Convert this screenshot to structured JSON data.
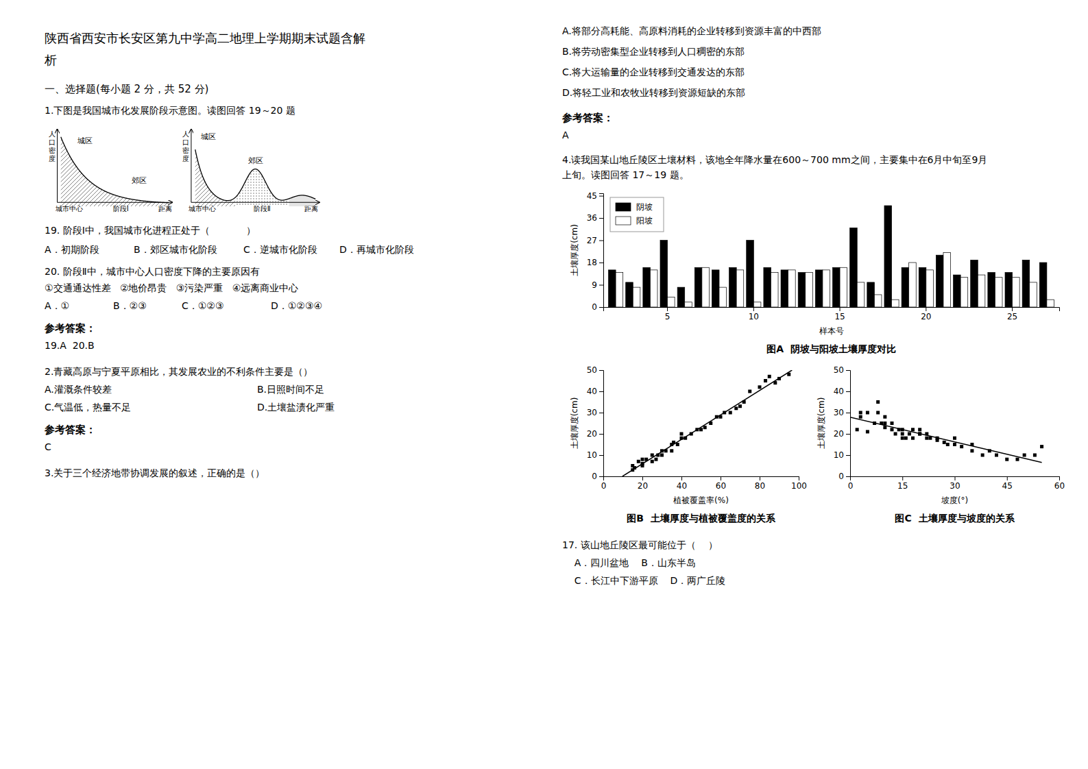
{
  "page": {
    "title_line1": "陕西省西安市长安区第九中学高二地理上学期期末试题含解",
    "title_line2": "析",
    "section1": "一、选择题(每小题 2 分，共 52 分)",
    "q1_text": "1.下图是我国城市化发展阶段示意图。读图回答 19～20 题",
    "q19_text": "19. 阶段Ⅰ中，我国城市化进程正处于（            ）",
    "q19_A": "A．初期阶段",
    "q19_B": "B．郊区城市化阶段",
    "q19_C": "C．逆城市化阶段",
    "q19_D": "D．再城市化阶段",
    "q20_text": "20. 阶段Ⅱ中，城市中心人口密度下降的主要原因有",
    "q20_sub": "①交通通达性差   ②地价昂贵   ③污染严重   ④远离商业中心",
    "q20_A": "A．①",
    "q20_B": "B．②③",
    "q20_C": "C．①②③",
    "q20_D": "D．①②③④",
    "ref1": "参考答案：",
    "ans1": "19.A  20.B",
    "q2_text": "2.青藏高原与宁夏平原相比，其发展农业的不利条件主要是（）",
    "q2_A": "A.灌溉条件较差",
    "q2_B": "B.日照时间不足",
    "q2_C": "C.气温低，热量不足",
    "q2_D": "D.土壤盐渍化严重",
    "ref2": "参考答案：",
    "ans2": "C",
    "q3_text": "3.关于三个经济地带协调发展的叙述，正确的是（）",
    "q3_A": "A.将部分高耗能、高原料消耗的企业转移到资源丰富的中西部",
    "q3_B": "B.将劳动密集型企业转移到人口稠密的东部",
    "q3_C": "C.将大运输量的企业转移到交通发达的东部",
    "q3_D": "D.将轻工业和农牧业转移到资源短缺的东部",
    "ref3": "参考答案：",
    "ans3": "A",
    "q4_line1": "4.读我国某山地丘陵区土壤材料，该地全年降水量在600～700 mm之间，主要集中在6月中旬至9月",
    "q4_line2": "上旬。读图回答 17～19 题。",
    "q17_text": "17. 该山地丘陵区最可能位于（    ）",
    "q17_AB": "    A．四川盆地    B．山东半岛",
    "q17_CD": "    C．长江中下游平原    D．两广丘陵"
  },
  "diagrams": [
    {
      "stage": "阶段Ⅰ",
      "y_label": "人口密度",
      "origin_label": "城市中心",
      "x_label": "距离",
      "region_labels": [
        "城区",
        "郊区"
      ]
    },
    {
      "stage": "阶段Ⅱ",
      "y_label": "人口密度",
      "origin_label": "城市中心",
      "x_label": "距离",
      "region_labels": [
        "城区",
        "郊区"
      ]
    }
  ],
  "chart_data": [
    {
      "type": "bar",
      "title": "图A  阴坡与阳坡土壤厚度对比",
      "x_label": "样本号",
      "y_label": "土壤厚度(cm)",
      "categories": [
        null,
        null,
        null,
        "5",
        null,
        null,
        null,
        null,
        "10",
        null,
        null,
        null,
        null,
        "15",
        null,
        null,
        null,
        null,
        "20",
        null,
        null,
        null,
        null,
        "25",
        null,
        null
      ],
      "series": [
        {
          "name": "阴坡",
          "color": "black",
          "values": [
            15,
            10,
            16,
            27,
            8,
            16,
            15,
            16,
            27,
            16,
            15,
            14,
            15,
            16,
            32,
            10,
            41,
            16,
            16,
            21,
            13,
            19,
            14,
            14,
            19,
            18
          ]
        },
        {
          "name": "阳坡",
          "color": "white",
          "values": [
            14,
            8,
            15,
            4,
            2,
            16,
            8,
            15,
            2,
            14,
            15,
            14,
            15,
            16,
            10,
            5,
            3,
            18,
            15,
            22,
            12,
            13,
            12,
            12,
            10,
            3
          ]
        }
      ],
      "ylim": [
        0,
        46
      ],
      "yticks": [
        0,
        9,
        18,
        27,
        36,
        45
      ],
      "legend": "upper left",
      "grid": false
    },
    {
      "type": "scatter",
      "title": "图B  土壤厚度与植被覆盖度的关系",
      "x_label": "植被覆盖率(%)",
      "y_label": "土壤厚度(cm)",
      "series": [
        {
          "type": "scatter",
          "marker": "square",
          "color": "black",
          "x": [
            15,
            15,
            16,
            18,
            20,
            20,
            20,
            22,
            25,
            25,
            27,
            28,
            30,
            30,
            32,
            35,
            35,
            36,
            38,
            40,
            40,
            42,
            45,
            48,
            50,
            52,
            55,
            58,
            60,
            62,
            65,
            68,
            70,
            72,
            75,
            80,
            83,
            85,
            88,
            90,
            95
          ],
          "values": [
            3,
            5,
            4,
            7,
            5,
            8,
            6,
            8,
            7,
            10,
            8,
            10,
            10,
            12,
            12,
            12,
            15,
            16,
            15,
            18,
            20,
            18,
            20,
            22,
            22,
            23,
            25,
            28,
            28,
            30,
            30,
            32,
            33,
            35,
            40,
            42,
            45,
            47,
            44,
            46,
            48
          ]
        },
        {
          "type": "line",
          "line_style": "solid",
          "color": "black",
          "x": [
            9.79,
            96.59
          ],
          "values": [
            0,
            50
          ]
        }
      ],
      "xlim": [
        0,
        100
      ],
      "ylim": [
        0,
        50
      ],
      "xticks": [
        0,
        20,
        40,
        60,
        80,
        100
      ],
      "yticks": [
        0,
        10,
        20,
        30,
        40,
        50
      ],
      "grid": false
    },
    {
      "type": "scatter",
      "title": "图C  土壤厚度与坡度的关系",
      "x_label": "坡度(°)",
      "y_label": "土壤厚度(cm)",
      "series": [
        {
          "type": "scatter",
          "marker": "square",
          "color": "black",
          "x": [
            2,
            3,
            3,
            5,
            5,
            7,
            8,
            8,
            9,
            10,
            10,
            10,
            12,
            12,
            13,
            14,
            15,
            15,
            15,
            16,
            17,
            18,
            18,
            20,
            20,
            20,
            22,
            22,
            23,
            25,
            25,
            27,
            28,
            30,
            30,
            32,
            35,
            35,
            38,
            40,
            42,
            45,
            48,
            50,
            53,
            55
          ],
          "values": [
            22,
            28,
            30,
            21,
            30,
            25,
            30,
            35,
            25,
            23,
            25,
            28,
            22,
            25,
            20,
            22,
            18,
            20,
            22,
            18,
            20,
            18,
            22,
            20,
            20,
            22,
            18,
            20,
            18,
            17,
            18,
            16,
            15,
            18,
            15,
            14,
            12,
            15,
            10,
            12,
            10,
            8,
            8,
            10,
            10,
            14
          ]
        },
        {
          "type": "line",
          "line_style": "solid",
          "color": "black",
          "x": [
            0,
            55
          ],
          "values": [
            27.85,
            6.5
          ]
        }
      ],
      "xlim": [
        0,
        60
      ],
      "ylim": [
        0,
        50
      ],
      "xticks": [
        0,
        15,
        30,
        45,
        60
      ],
      "yticks": [
        0,
        10,
        20,
        30,
        40,
        50
      ],
      "grid": false
    }
  ]
}
